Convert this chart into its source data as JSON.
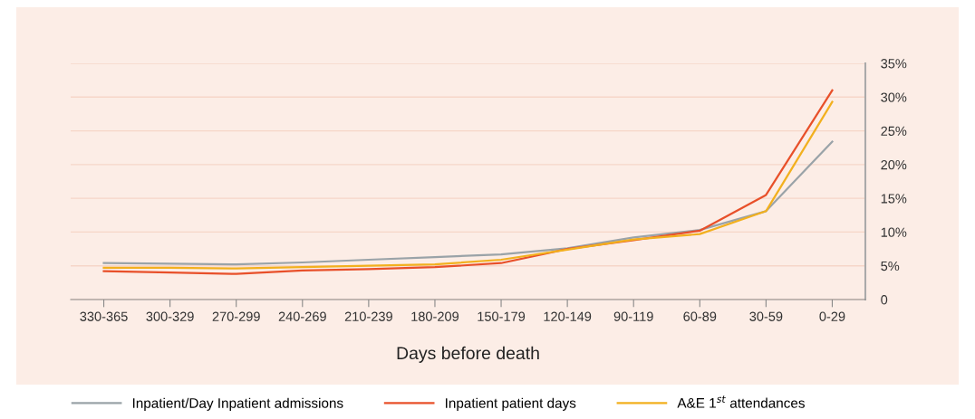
{
  "chart_data": {
    "type": "line",
    "xlabel": "Days before death",
    "categories": [
      "330-365",
      "300-329",
      "270-299",
      "240-269",
      "210-239",
      "180-209",
      "150-179",
      "120-149",
      "90-119",
      "60-89",
      "30-59",
      "0-29"
    ],
    "series": [
      {
        "name": "Inpatient/Day Inpatient admissions",
        "color": "#9aa3a8",
        "values": [
          5.4,
          5.3,
          5.2,
          5.5,
          5.9,
          6.3,
          6.7,
          7.6,
          9.2,
          10.3,
          13.1,
          23.4
        ]
      },
      {
        "name": "Inpatient patient days",
        "color": "#e8502a",
        "values": [
          4.2,
          4.0,
          3.8,
          4.3,
          4.5,
          4.8,
          5.4,
          7.5,
          8.8,
          10.2,
          15.5,
          31.0
        ]
      },
      {
        "name": "A&E 1$^{st}$ attendances",
        "color": "#f2b01e",
        "values": [
          4.7,
          4.7,
          4.6,
          4.8,
          5.0,
          5.2,
          5.9,
          7.4,
          8.9,
          9.7,
          13.1,
          29.3
        ]
      }
    ],
    "ylim": [
      0,
      35
    ],
    "yticks": [
      0,
      {
        "value": 5,
        "label": "5%"
      },
      {
        "value": 10,
        "label": "10%"
      },
      {
        "value": 15,
        "label": "15%"
      },
      {
        "value": 20,
        "label": "20%"
      },
      {
        "value": 25,
        "label": "25%"
      },
      {
        "value": 30,
        "label": "30%"
      },
      {
        "value": 35,
        "label": "35%"
      }
    ],
    "grid": "y",
    "legend": "bottom",
    "marker": "none",
    "line_style": "solid"
  }
}
